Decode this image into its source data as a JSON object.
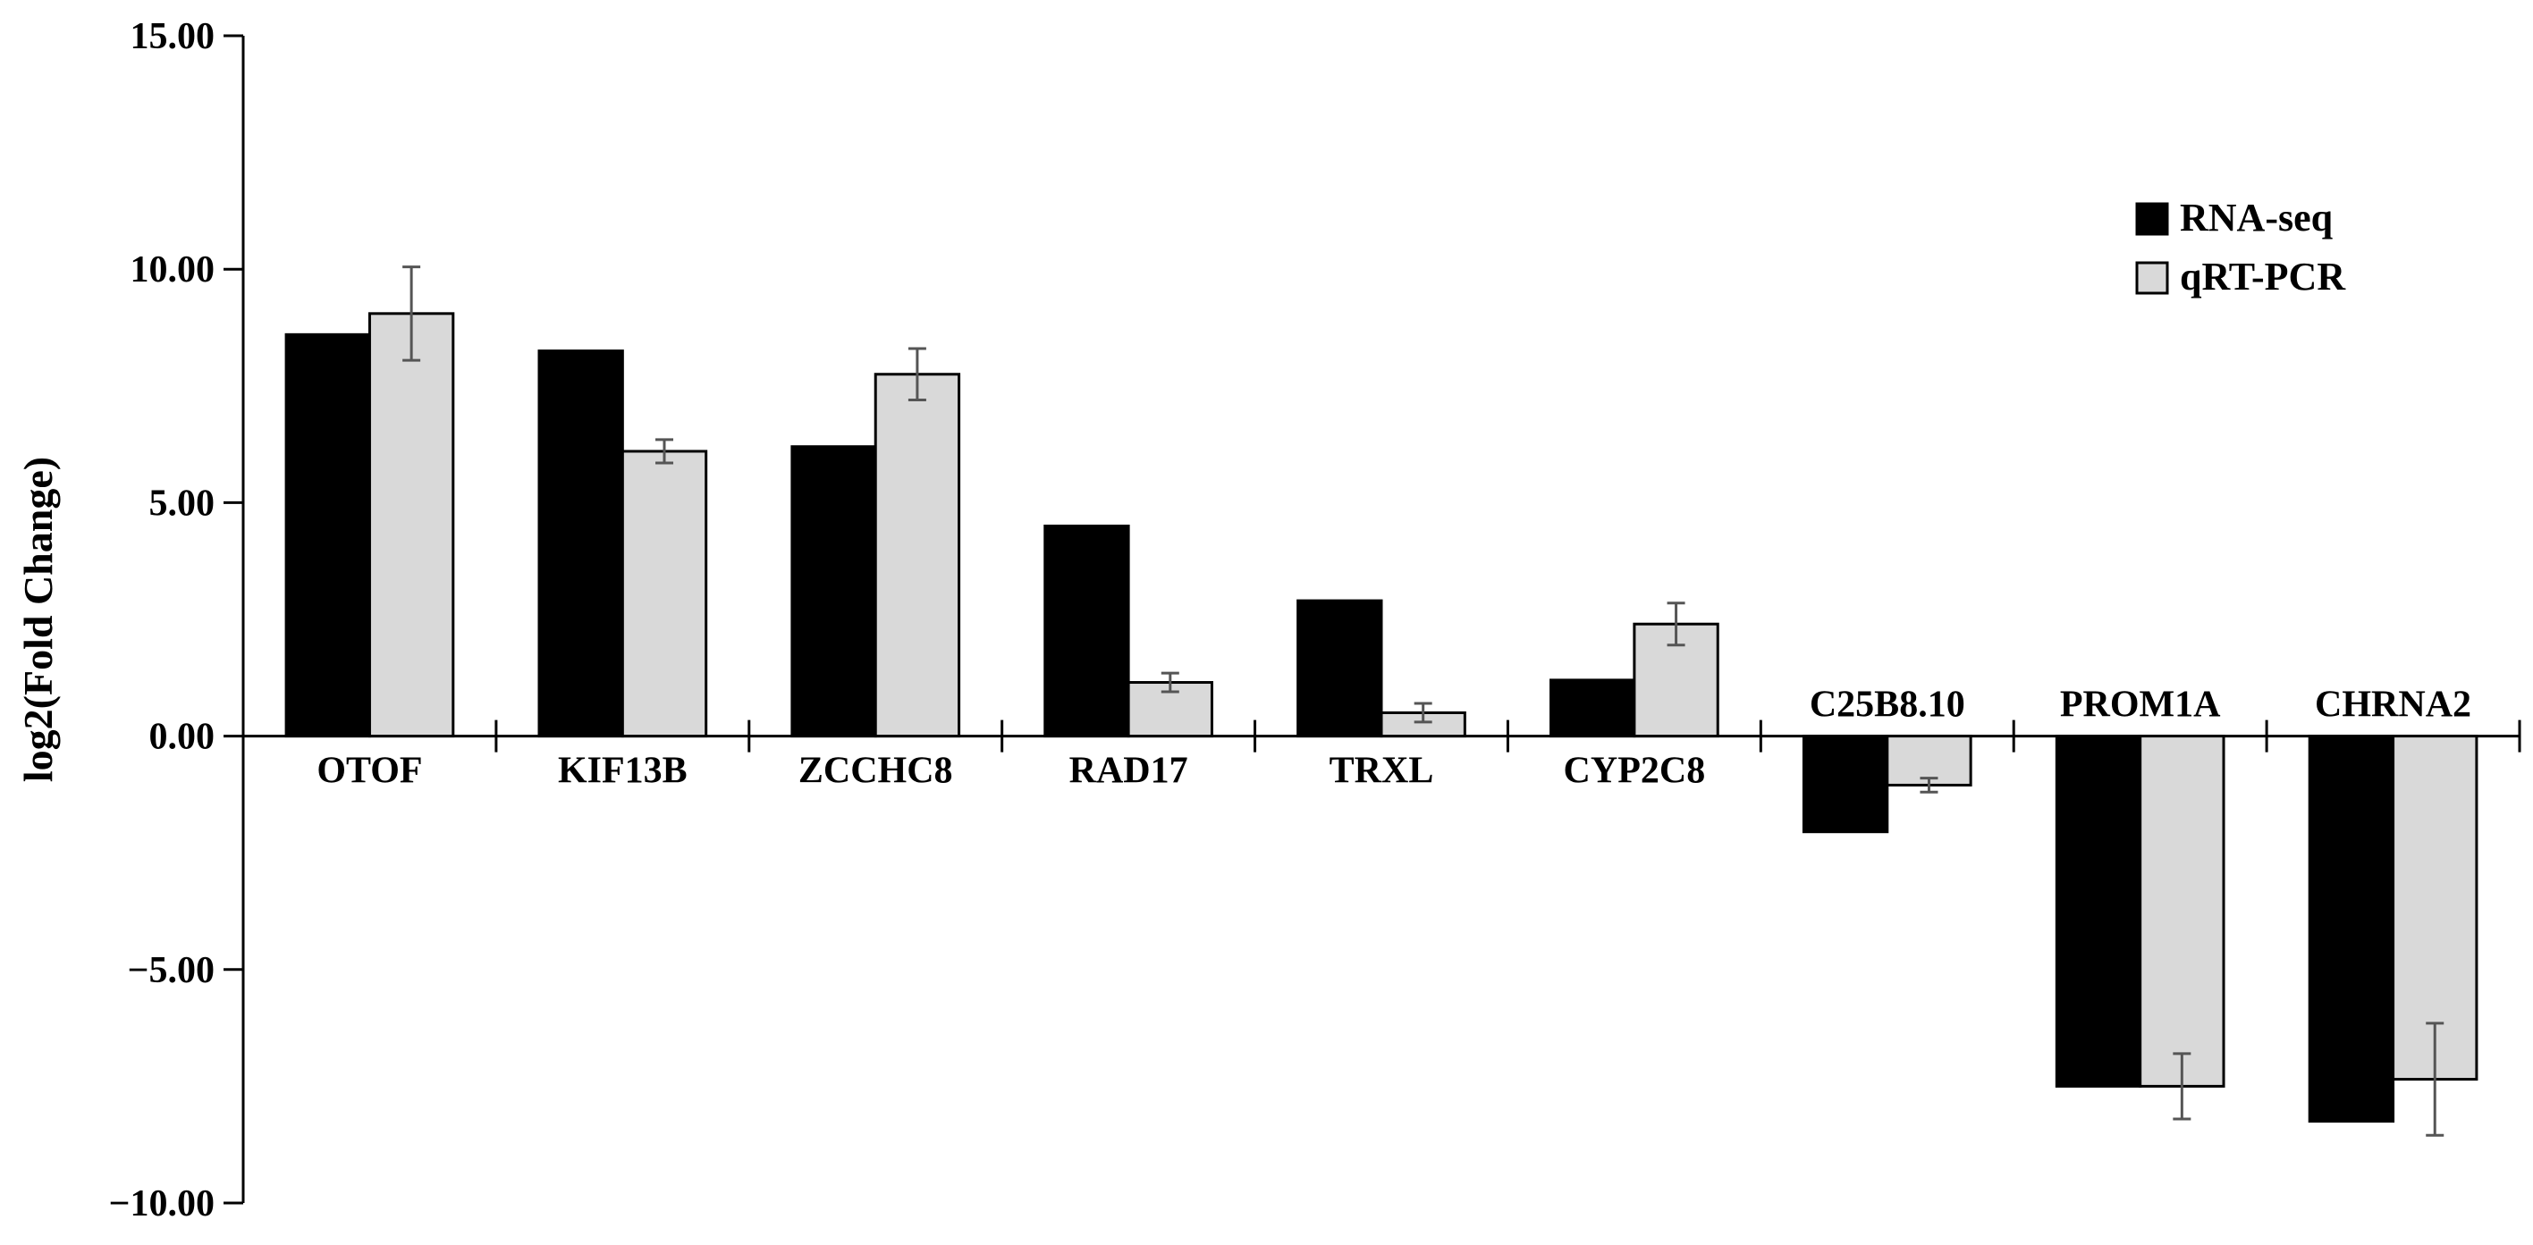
{
  "chart_data": {
    "type": "bar",
    "title": "",
    "xlabel": "",
    "ylabel": "log2(Fold Change)",
    "ylim": [
      -10,
      15
    ],
    "yticks": [
      15,
      10,
      5,
      0,
      -5,
      -10
    ],
    "ytick_labels": [
      "15.00",
      "10.00",
      "5.00",
      "0.00",
      "−5.00",
      "−10.00"
    ],
    "grid": false,
    "legend_position": "top-right",
    "categories": [
      "OTOF",
      "KIF13B",
      "ZCCHC8",
      "RAD17",
      "TRXL",
      "CYP2C8",
      "C25B8.10",
      "PROM1A",
      "CHRNA2"
    ],
    "series": [
      {
        "name": "RNA-seq",
        "color": "#000000",
        "values": [
          8.6,
          8.25,
          6.2,
          4.5,
          2.9,
          1.2,
          -2.05,
          -7.5,
          -8.25
        ],
        "errors": null
      },
      {
        "name": "qRT-PCR",
        "color": "#d9d9d9",
        "values": [
          9.05,
          6.1,
          7.75,
          1.15,
          0.5,
          2.4,
          -1.05,
          -7.5,
          -7.35
        ],
        "errors": [
          1.0,
          0.25,
          0.55,
          0.2,
          0.2,
          0.45,
          0.15,
          0.7,
          1.2
        ]
      }
    ]
  }
}
